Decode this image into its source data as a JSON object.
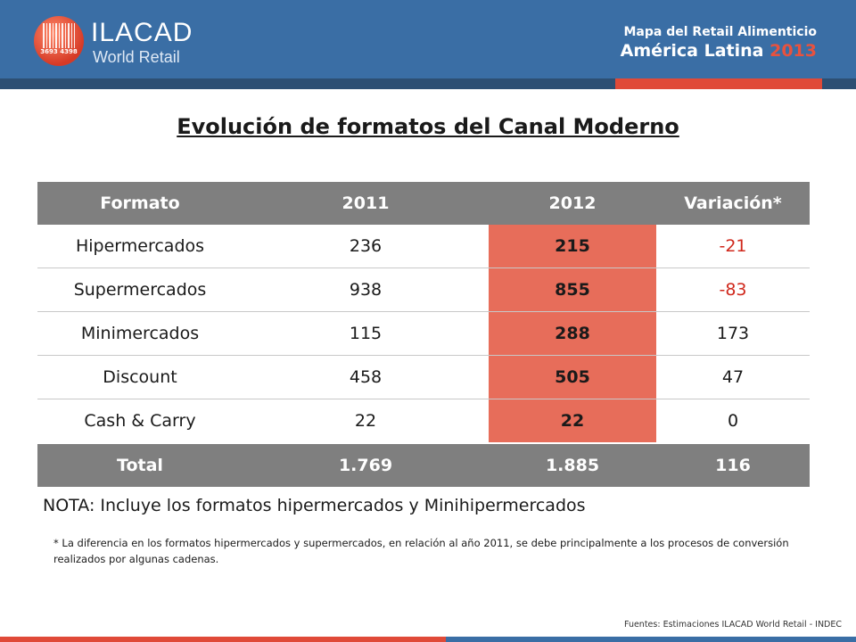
{
  "header": {
    "logo_name": "ILACAD",
    "logo_sub": "World Retail",
    "logo_digits": "3693  4398",
    "right_line1": "Mapa del Retail Alimenticio",
    "right_line2": "América Latina",
    "right_year": "2013",
    "colors": {
      "header_bg": "#3a6ea5",
      "accent": "#e04a38"
    }
  },
  "title": "Evolución de formatos del Canal Moderno",
  "table": {
    "headers": [
      "Formato",
      "2011",
      "2012",
      "Variación*"
    ],
    "rows": [
      {
        "formato": "Hipermercados",
        "y2011": "236",
        "y2012": "215",
        "variacion": "-21"
      },
      {
        "formato": "Supermercados",
        "y2011": "938",
        "y2012": "855",
        "variacion": "-83"
      },
      {
        "formato": "Minimercados",
        "y2011": "115",
        "y2012": "288",
        "variacion": "173"
      },
      {
        "formato": "Discount",
        "y2011": "458",
        "y2012": "505",
        "variacion": "47"
      },
      {
        "formato": "Cash & Carry",
        "y2011": "22",
        "y2012": "22",
        "variacion": "0"
      }
    ],
    "total": {
      "formato": "Total",
      "y2011": "1.769",
      "y2012": "1.885",
      "variacion": "116"
    },
    "colors": {
      "header_bg": "#7f7f7f",
      "highlight": "#e76d5a",
      "negative": "#d0281c"
    }
  },
  "nota": "NOTA: Incluye los formatos hipermercados y Minihipermercados",
  "footnote": "* La diferencia en los formatos hipermercados y supermercados, en relación al año 2011, se debe principalmente a los procesos de conversión realizados por algunas cadenas.",
  "source": "Fuentes: Estimaciones ILACAD World Retail - INDEC"
}
